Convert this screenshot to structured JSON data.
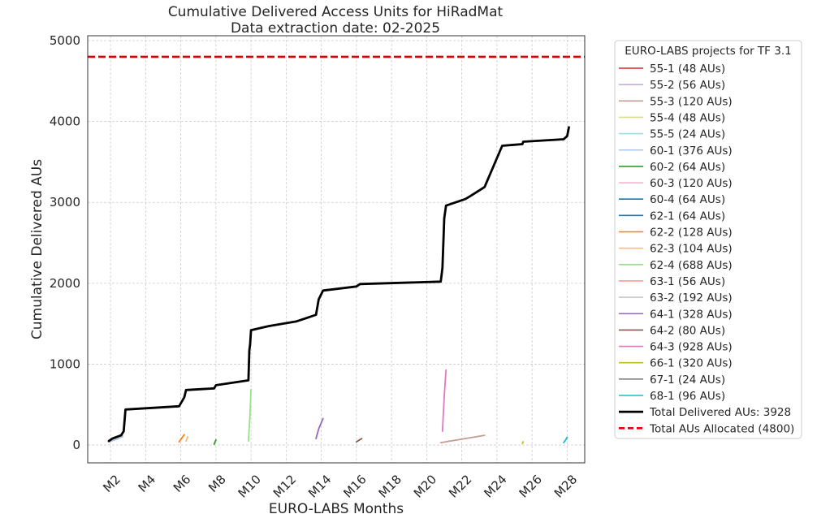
{
  "chart_data": {
    "type": "line",
    "title": "Cumulative Delivered Access Units for HiRadMat",
    "subtitle": "Data extraction date: 02-2025",
    "xlabel": "EURO-LABS Months",
    "ylabel": "Cumulative Delivered AUs",
    "xlim": [
      0.7,
      29.0
    ],
    "ylim": [
      -220,
      5060
    ],
    "x_ticks": [
      2,
      4,
      6,
      8,
      10,
      12,
      14,
      16,
      18,
      20,
      22,
      24,
      26,
      28
    ],
    "x_tick_labels": [
      "M2",
      "M4",
      "M6",
      "M8",
      "M10",
      "M12",
      "M14",
      "M16",
      "M18",
      "M20",
      "M22",
      "M24",
      "M26",
      "M28"
    ],
    "y_ticks": [
      0,
      1000,
      2000,
      3000,
      4000,
      5000
    ],
    "y_tick_labels": [
      "0",
      "1000",
      "2000",
      "3000",
      "4000",
      "5000"
    ],
    "grid": true,
    "legend_title": "EURO-LABS projects for TF 3.1",
    "legend_placement": "outside-right",
    "series": [
      {
        "name": "55-1 (48 AUs)",
        "color": "#d62728",
        "x": [],
        "y": []
      },
      {
        "name": "55-2 (56 AUs)",
        "color": "#c5b0d5",
        "x": [
          1.9,
          2.7
        ],
        "y": [
          48,
          104
        ]
      },
      {
        "name": "55-3 (120 AUs)",
        "color": "#c49c94",
        "x": [
          20.8,
          23.3
        ],
        "y": [
          30,
          120
        ]
      },
      {
        "name": "55-4 (48 AUs)",
        "color": "#dbdb8d",
        "x": [],
        "y": []
      },
      {
        "name": "55-5 (24 AUs)",
        "color": "#9edae5",
        "x": [],
        "y": []
      },
      {
        "name": "60-1 (376 AUs)",
        "color": "#aec7e8",
        "x": [
          1.9,
          2.4,
          2.7
        ],
        "y": [
          40,
          75,
          110
        ]
      },
      {
        "name": "60-2 (64 AUs)",
        "color": "#2ca02c",
        "x": [
          7.9,
          7.95,
          8.0
        ],
        "y": [
          10,
          40,
          64
        ]
      },
      {
        "name": "60-3 (120 AUs)",
        "color": "#f7b6d2",
        "x": [],
        "y": []
      },
      {
        "name": "60-4 (64 AUs)",
        "color": "#1f77b4",
        "x": [],
        "y": []
      },
      {
        "name": "62-1 (64 AUs)",
        "color": "#1f77b4",
        "x": [],
        "y": []
      },
      {
        "name": "62-2 (128 AUs)",
        "color": "#ff7f0e",
        "x": [
          5.9,
          6.2
        ],
        "y": [
          40,
          128
        ]
      },
      {
        "name": "62-3 (104 AUs)",
        "color": "#ffbb78",
        "x": [
          6.3,
          6.4
        ],
        "y": [
          50,
          104
        ]
      },
      {
        "name": "62-4 (688 AUs)",
        "color": "#98df8a",
        "x": [
          9.85,
          9.95,
          10.0
        ],
        "y": [
          50,
          400,
          688
        ]
      },
      {
        "name": "63-1 (56 AUs)",
        "color": "#ff9896",
        "x": [],
        "y": []
      },
      {
        "name": "63-2 (192 AUs)",
        "color": "#c7c7c7",
        "x": [],
        "y": []
      },
      {
        "name": "64-1 (328 AUs)",
        "color": "#9467bd",
        "x": [
          13.7,
          13.85,
          14.1
        ],
        "y": [
          80,
          200,
          328
        ]
      },
      {
        "name": "64-2 (80 AUs)",
        "color": "#8c564b",
        "x": [
          16.0,
          16.3
        ],
        "y": [
          40,
          80
        ]
      },
      {
        "name": "64-3 (928 AUs)",
        "color": "#e377c2",
        "x": [
          20.9,
          21.0,
          21.1
        ],
        "y": [
          170,
          600,
          928
        ]
      },
      {
        "name": "66-1 (320 AUs)",
        "color": "#bcbd22",
        "x": [
          25.45,
          25.5
        ],
        "y": [
          20,
          40
        ]
      },
      {
        "name": "67-1 (24 AUs)",
        "color": "#7f7f7f",
        "x": [],
        "y": []
      },
      {
        "name": "68-1 (96 AUs)",
        "color": "#17becf",
        "x": [
          27.8,
          27.9,
          28.0
        ],
        "y": [
          30,
          60,
          96
        ]
      },
      {
        "name": "Total Delivered AUs: 3928",
        "color": "#000000",
        "style": "solid-thick",
        "x": [
          1.9,
          2.1,
          2.6,
          2.75,
          2.85,
          5.9,
          6.2,
          6.3,
          7.9,
          8.0,
          9.85,
          9.9,
          9.95,
          10.0,
          11.0,
          12.6,
          13.7,
          13.85,
          14.1,
          16.0,
          16.2,
          20.8,
          20.9,
          21.0,
          21.1,
          22.2,
          22.5,
          23.3,
          24.3,
          25.45,
          25.5,
          27.8,
          28.0,
          28.1
        ],
        "y": [
          50,
          80,
          120,
          170,
          440,
          480,
          590,
          680,
          700,
          740,
          800,
          1170,
          1250,
          1420,
          1470,
          1530,
          1610,
          1800,
          1910,
          1960,
          1990,
          2020,
          2190,
          2800,
          2960,
          3040,
          3080,
          3190,
          3700,
          3720,
          3750,
          3780,
          3820,
          3928
        ]
      },
      {
        "name": "Total AUs Allocated (4800)",
        "color": "#e00000",
        "style": "dashed",
        "hline": 4800
      }
    ]
  }
}
